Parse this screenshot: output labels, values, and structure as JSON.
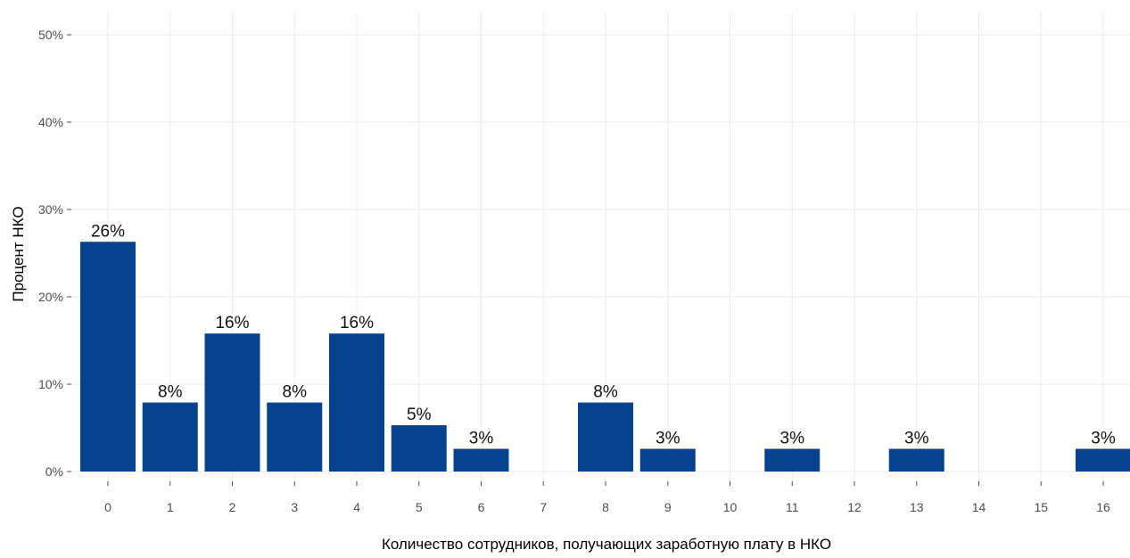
{
  "chart_data": {
    "type": "bar",
    "title": "",
    "xlabel": "Количество сотрудников, получающих заработную плату в НКО",
    "ylabel": "Процент НКО",
    "categories": [
      "0",
      "1",
      "2",
      "3",
      "4",
      "5",
      "6",
      "7",
      "8",
      "9",
      "10",
      "11",
      "12",
      "13",
      "14",
      "15",
      "16"
    ],
    "values": [
      26.3,
      7.9,
      15.8,
      7.9,
      15.8,
      5.3,
      2.6,
      0,
      7.9,
      2.6,
      0,
      2.6,
      0,
      2.6,
      0,
      0,
      2.6
    ],
    "data_labels": [
      "26%",
      "8%",
      "16%",
      "8%",
      "16%",
      "5%",
      "3%",
      "",
      "8%",
      "3%",
      "",
      "3%",
      "",
      "3%",
      "",
      "",
      "3%"
    ],
    "ylim": [
      0,
      50
    ],
    "y_ticks": [
      0,
      10,
      20,
      30,
      40,
      50
    ],
    "y_tick_labels": [
      "0%",
      "10%",
      "20%",
      "30%",
      "40%",
      "50%"
    ],
    "grid": true,
    "colors": {
      "bar": "#07428f",
      "grid": "#ebebeb",
      "tick": "#4d4d4d",
      "background": "#ffffff"
    }
  }
}
